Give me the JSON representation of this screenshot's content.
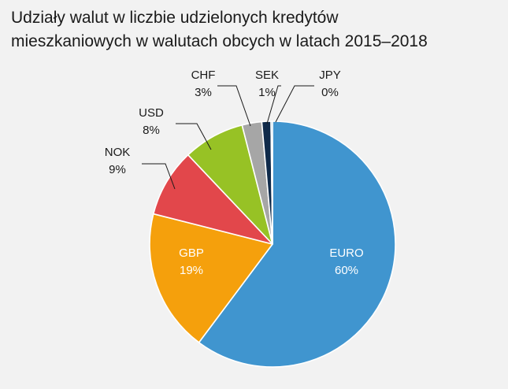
{
  "title": {
    "line1": "Udziały walut w liczbie udzielonych kredytów",
    "line2": "mieszkaniowych w walutach obcych w latach 2015–2018"
  },
  "colors": {
    "background": "#f2f2f2",
    "separator": "#ffffff",
    "leader": "#1a1a1a"
  },
  "chart_data": {
    "type": "pie",
    "title": "Udziały walut w liczbie udzielonych kredytów mieszkaniowych w walutach obcych w latach 2015–2018",
    "start_angle_deg": 0,
    "direction": "clockwise",
    "slices": [
      {
        "label": "EURO",
        "value_label": "60%",
        "value": 60.4,
        "color": "#4095cf",
        "label_color": "#ffffff",
        "label_position": "inside"
      },
      {
        "label": "GBP",
        "value_label": "19%",
        "value": 18.8,
        "color": "#f5a00c",
        "label_color": "#ffffff",
        "label_position": "inside"
      },
      {
        "label": "NOK",
        "value_label": "9%",
        "value": 9.0,
        "color": "#e2474b",
        "label_color": "#1a1a1a",
        "label_position": "outside"
      },
      {
        "label": "USD",
        "value_label": "8%",
        "value": 8.1,
        "color": "#97c225",
        "label_color": "#1a1a1a",
        "label_position": "outside"
      },
      {
        "label": "CHF",
        "value_label": "3%",
        "value": 2.6,
        "color": "#a6a6a6",
        "label_color": "#1a1a1a",
        "label_position": "outside"
      },
      {
        "label": "SEK",
        "value_label": "1%",
        "value": 1.2,
        "color": "#0f2a4a",
        "label_color": "#1a1a1a",
        "label_position": "outside"
      },
      {
        "label": "JPY",
        "value_label": "0%",
        "value": 0.2,
        "color": "#4095cf",
        "label_color": "#1a1a1a",
        "label_position": "outside"
      }
    ]
  }
}
